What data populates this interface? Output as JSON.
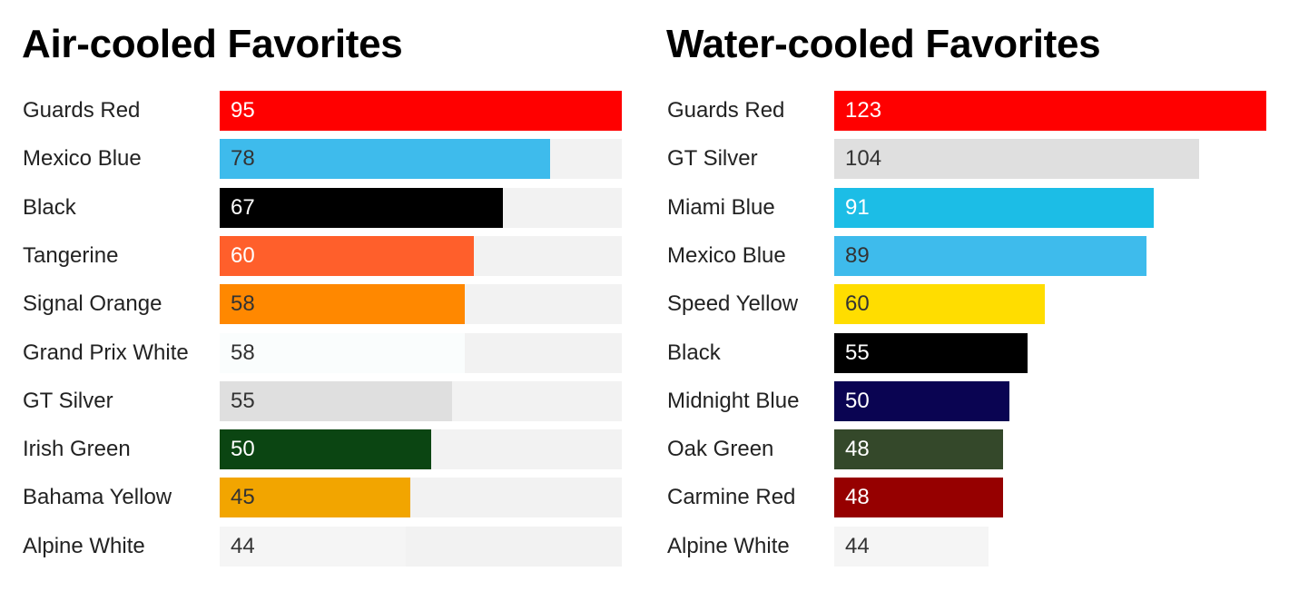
{
  "chart_data": [
    {
      "type": "bar",
      "orientation": "horizontal",
      "title": "Air-cooled Favorites",
      "background_track": true,
      "xlim": [
        0,
        95
      ],
      "categories": [
        "Guards Red",
        "Mexico Blue",
        "Black",
        "Tangerine",
        "Signal Orange",
        "Grand Prix White",
        "GT Silver",
        "Irish Green",
        "Bahama Yellow",
        "Alpine White"
      ],
      "values": [
        95,
        78,
        67,
        60,
        58,
        58,
        55,
        50,
        45,
        44
      ],
      "colors": [
        "#ff0000",
        "#3ebbec",
        "#000000",
        "#ff5f2b",
        "#ff8800",
        "#fafdfd",
        "#dfdfdf",
        "#0b4512",
        "#f2a500",
        "#f5f5f5"
      ]
    },
    {
      "type": "bar",
      "orientation": "horizontal",
      "title": "Water-cooled Favorites",
      "background_track": false,
      "xlim": [
        0,
        123
      ],
      "categories": [
        "Guards Red",
        "GT Silver",
        "Miami Blue",
        "Mexico Blue",
        "Speed Yellow",
        "Black",
        "Midnight Blue",
        "Oak Green",
        "Carmine Red",
        "Alpine White"
      ],
      "values": [
        123,
        104,
        91,
        89,
        60,
        55,
        50,
        48,
        48,
        44
      ],
      "colors": [
        "#ff0000",
        "#dfdfdf",
        "#1cbde6",
        "#3ebbec",
        "#ffdd00",
        "#000000",
        "#0a0452",
        "#34482a",
        "#960000",
        "#f5f5f5"
      ]
    }
  ]
}
